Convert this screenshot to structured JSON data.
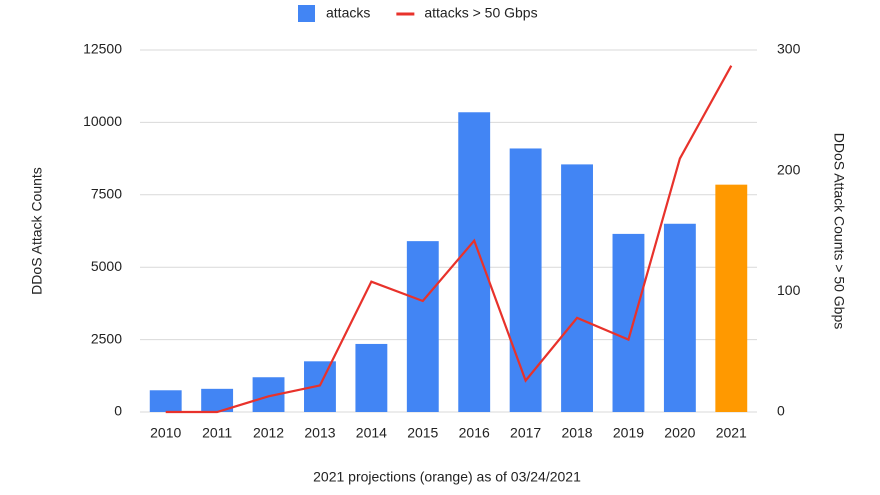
{
  "chart_data": {
    "type": "bar-line",
    "categories": [
      "2010",
      "2011",
      "2012",
      "2013",
      "2014",
      "2015",
      "2016",
      "2017",
      "2018",
      "2019",
      "2020",
      "2021"
    ],
    "series": [
      {
        "name": "attacks",
        "type": "bar",
        "color": "#4285f4",
        "colors": [
          "#4285f4",
          "#4285f4",
          "#4285f4",
          "#4285f4",
          "#4285f4",
          "#4285f4",
          "#4285f4",
          "#4285f4",
          "#4285f4",
          "#4285f4",
          "#4285f4",
          "#ff9900"
        ],
        "values": [
          750,
          800,
          1200,
          1750,
          2350,
          5900,
          10350,
          9100,
          8550,
          6150,
          6500,
          7850
        ]
      },
      {
        "name": "attacks > 50 Gbps",
        "type": "line",
        "axis": "y2",
        "color": "#e8322b",
        "values": [
          0,
          0,
          13,
          22,
          108,
          92,
          142,
          26,
          78,
          60,
          210,
          287
        ]
      }
    ],
    "y_label": "DDoS Attack Counts",
    "y2_label": "DDoS Attack Counts > 50 Gbps",
    "x_label": "2021 projections (orange) as of 03/24/2021",
    "ylim": [
      0,
      12500
    ],
    "yticks": [
      0,
      2500,
      5000,
      7500,
      10000,
      12500
    ],
    "y2lim": [
      0,
      300
    ],
    "y2ticks": [
      0,
      100,
      200,
      300
    ],
    "grid": true,
    "legend": "top"
  }
}
